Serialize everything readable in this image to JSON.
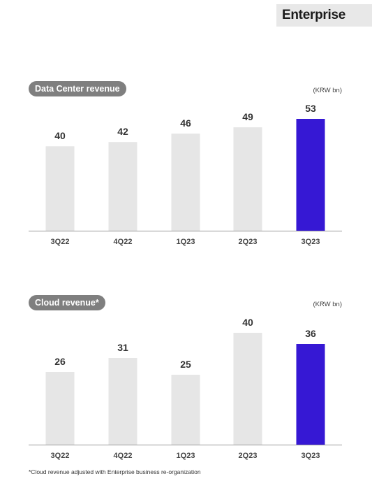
{
  "header": {
    "title": "Enterprise"
  },
  "charts": {
    "dc": {
      "label": "Data Center revenue",
      "unit": "(KRW bn)"
    },
    "cloud": {
      "label": "Cloud revenue*",
      "unit": "(KRW bn)"
    }
  },
  "footnote": "*Cloud revenue adjusted with Enterprise business re-organization",
  "colors": {
    "bar": "#e6e6e6",
    "highlight": "#3618d4",
    "axis": "#999999",
    "pill": "#7f7f7f"
  },
  "chart_data": [
    {
      "type": "bar",
      "title": "Data Center revenue",
      "unit": "(KRW bn)",
      "categories": [
        "3Q22",
        "4Q22",
        "1Q23",
        "2Q23",
        "3Q23"
      ],
      "values": [
        40,
        42,
        46,
        49,
        53
      ],
      "highlight_index": 4,
      "ylim": [
        0,
        53
      ]
    },
    {
      "type": "bar",
      "title": "Cloud revenue*",
      "unit": "(KRW bn)",
      "categories": [
        "3Q22",
        "4Q22",
        "1Q23",
        "2Q23",
        "3Q23"
      ],
      "values": [
        26,
        31,
        25,
        40,
        36
      ],
      "highlight_index": 4,
      "ylim": [
        0,
        40
      ]
    }
  ]
}
